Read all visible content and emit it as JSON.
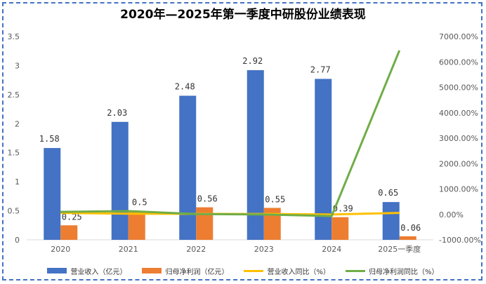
{
  "chart_data": {
    "type": "bar",
    "title": "2020年—2025年第一季度中研股份业绩表现",
    "categories": [
      "2020",
      "2021",
      "2022",
      "2023",
      "2024",
      "2025一季度"
    ],
    "series": [
      {
        "name": "营业收入（亿元）",
        "kind": "bar",
        "axis": "left",
        "color": "#4472c4",
        "values": [
          1.58,
          2.03,
          2.48,
          2.92,
          2.77,
          0.65
        ],
        "labels": [
          "1.58",
          "2.03",
          "2.48",
          "2.92",
          "2.77",
          "0.65"
        ]
      },
      {
        "name": "归母净利润（亿元）",
        "kind": "bar",
        "axis": "left",
        "color": "#ed7d31",
        "values": [
          0.25,
          0.5,
          0.56,
          0.55,
          0.39,
          0.06
        ],
        "labels": [
          "0.25",
          "0.5",
          "0.56",
          "0.55",
          "0.39",
          "0.06"
        ]
      },
      {
        "name": "营业收入同比（%）",
        "kind": "line",
        "axis": "right",
        "color": "#ffc000",
        "values": [
          60,
          28,
          22,
          18,
          -5,
          60
        ]
      },
      {
        "name": "归母净利润同比（%）",
        "kind": "line",
        "axis": "right",
        "color": "#70ad47",
        "values": [
          100,
          130,
          15,
          -5,
          -65,
          6450
        ]
      }
    ],
    "y_left": {
      "min": 0,
      "max": 3.5,
      "ticks": [
        "0",
        "0.5",
        "1",
        "1.5",
        "2",
        "2.5",
        "3",
        "3.5"
      ]
    },
    "y_right": {
      "min": -1000,
      "max": 7000,
      "ticks": [
        "-1000.00%",
        "0.00%",
        "1000.00%",
        "2000.00%",
        "3000.00%",
        "4000.00%",
        "5000.00%",
        "6000.00%",
        "7000.00%"
      ]
    },
    "legend_position": "bottom",
    "grid": false
  }
}
